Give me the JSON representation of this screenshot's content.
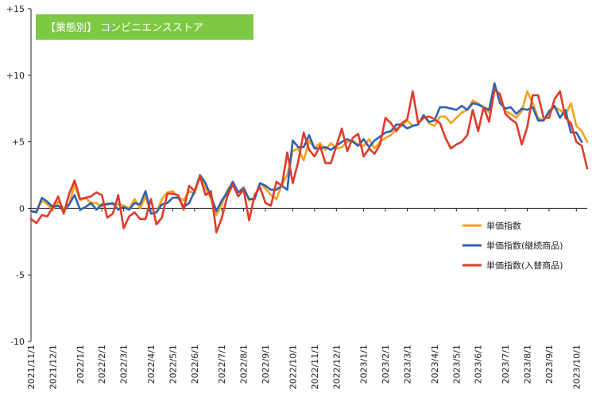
{
  "title": "【業態別】 コンビニエンスストア",
  "colors": {
    "title_bg": "#7dc943",
    "axis": "#222222",
    "series": [
      "#f5a21b",
      "#2e62b2",
      "#e03b2a"
    ]
  },
  "chart_data": {
    "type": "line",
    "title": "【業態別】 コンビニエンスストア",
    "xlabel": "",
    "ylabel": "",
    "ylim": [
      -10,
      15
    ],
    "yticks": [
      -10,
      -5,
      0,
      5,
      10,
      15
    ],
    "ytick_labels": [
      "-10",
      "-5",
      "0",
      "+5",
      "+10",
      "+15"
    ],
    "x_ticks": [
      {
        "index": 0,
        "label": "2021/11/1"
      },
      {
        "index": 4,
        "label": "2021/12/1"
      },
      {
        "index": 9,
        "label": "2022/1/1"
      },
      {
        "index": 13,
        "label": "2022/2/1"
      },
      {
        "index": 17,
        "label": "2022/3/1"
      },
      {
        "index": 22,
        "label": "2022/4/1"
      },
      {
        "index": 26,
        "label": "2022/5/1"
      },
      {
        "index": 30,
        "label": "2022/6/1"
      },
      {
        "index": 35,
        "label": "2022/7/1"
      },
      {
        "index": 39,
        "label": "2022/8/1"
      },
      {
        "index": 43,
        "label": "2022/9/1"
      },
      {
        "index": 48,
        "label": "2022/10/1"
      },
      {
        "index": 52,
        "label": "2022/11/1"
      },
      {
        "index": 56,
        "label": "2022/12/1"
      },
      {
        "index": 61,
        "label": "2023/1/1"
      },
      {
        "index": 65,
        "label": "2023/2/1"
      },
      {
        "index": 69,
        "label": "2023/3/1"
      },
      {
        "index": 74,
        "label": "2023/4/1"
      },
      {
        "index": 78,
        "label": "2023/5/1"
      },
      {
        "index": 82,
        "label": "2023/6/1"
      },
      {
        "index": 87,
        "label": "2023/7/1"
      },
      {
        "index": 91,
        "label": "2023/8/1"
      },
      {
        "index": 95,
        "label": "2023/9/1"
      },
      {
        "index": 100,
        "label": "2023/10/1"
      }
    ],
    "legend_position": "right",
    "grid": false,
    "series": [
      {
        "name": "単価指数",
        "values": [
          -0.3,
          -0.2,
          0.6,
          0.3,
          -0.1,
          0.5,
          0,
          0.3,
          1.8,
          0.6,
          0.8,
          0.4,
          0.4,
          0.1,
          0.4,
          0.3,
          0.3,
          0.2,
          0,
          0.7,
          0,
          0.9,
          -0.4,
          -0.3,
          0.7,
          1.2,
          1.3,
          0.8,
          0.6,
          1.3,
          1.1,
          2.5,
          1.6,
          0.7,
          -0.5,
          0.3,
          1.4,
          1.9,
          1.2,
          1.6,
          0.6,
          0.8,
          1.9,
          1.5,
          1.0,
          0.7,
          1.8,
          2.5,
          4.3,
          4.5,
          3.6,
          5.1,
          4.5,
          4.9,
          4.4,
          4.9,
          4.5,
          4.6,
          5.0,
          5.1,
          4.8,
          4.7,
          5.2,
          4.5,
          5.0,
          5.3,
          5.5,
          6.0,
          6.2,
          6.6,
          6.2,
          6.3,
          7.0,
          6.4,
          6.2,
          6.9,
          6.9,
          6.4,
          6.8,
          7.2,
          7.4,
          8.1,
          7.9,
          7.6,
          7.2,
          9.2,
          8.3,
          7.3,
          7.1,
          6.8,
          7.3,
          8.8,
          7.9,
          6.8,
          6.6,
          7.2,
          7.6,
          7.4,
          7.0,
          7.9,
          6.2,
          5.8,
          5.0
        ],
        "color": "#f5a21b"
      },
      {
        "name": "単価指数(継続商品)",
        "values": [
          -0.2,
          -0.3,
          0.8,
          0.5,
          0.1,
          0.2,
          -0.2,
          0.3,
          1.0,
          -0.1,
          0.1,
          0.4,
          -0.1,
          0.3,
          0.3,
          0.4,
          -0.1,
          0.1,
          -0.1,
          0.4,
          0.3,
          1.3,
          -0.4,
          -0.3,
          0.3,
          0.4,
          0.8,
          0.8,
          0.1,
          0.4,
          1.3,
          2.5,
          1.9,
          0.9,
          -0.2,
          0.6,
          1.2,
          2.0,
          1.2,
          1.5,
          0.7,
          0.7,
          1.9,
          1.7,
          1.4,
          1.4,
          1.7,
          1.4,
          5.1,
          4.6,
          4.6,
          5.5,
          4.5,
          4.5,
          4.6,
          4.4,
          4.7,
          5.0,
          5.2,
          5.0,
          4.7,
          5.2,
          4.6,
          5.1,
          5.4,
          5.7,
          5.8,
          6.3,
          6.3,
          6.0,
          6.2,
          6.3,
          7.0,
          6.5,
          6.6,
          7.6,
          7.6,
          7.5,
          7.4,
          7.7,
          7.4,
          7.9,
          7.8,
          7.6,
          7.4,
          9.4,
          7.9,
          7.5,
          7.6,
          7.1,
          7.5,
          7.4,
          7.6,
          6.6,
          6.6,
          7.3,
          7.7,
          6.8,
          7.4,
          5.7,
          5.7,
          5.0
        ],
        "color": "#2e62b2"
      },
      {
        "name": "単価指数(入替商品)",
        "values": [
          -0.8,
          -1.1,
          -0.5,
          -0.6,
          0.1,
          0.9,
          -0.4,
          1.1,
          2.1,
          0.7,
          0.8,
          0.9,
          1.2,
          1.0,
          -0.7,
          -0.4,
          1.0,
          -1.5,
          -0.6,
          -0.3,
          -0.8,
          -0.8,
          0.7,
          -1.2,
          -0.7,
          1.1,
          1.1,
          1.0,
          -0.1,
          1.7,
          1.3,
          2.4,
          1.0,
          1.3,
          -1.8,
          -0.7,
          0.9,
          1.8,
          0.9,
          1.4,
          -0.9,
          1.0,
          1.6,
          0.4,
          0.2,
          2.0,
          1.7,
          4.2,
          1.9,
          3.5,
          5.7,
          4.4,
          3.9,
          4.7,
          3.4,
          3.4,
          4.7,
          6.0,
          4.3,
          5.3,
          5.6,
          3.9,
          4.5,
          4.1,
          4.8,
          6.8,
          6.4,
          5.8,
          6.4,
          6.7,
          8.8,
          6.4,
          6.8,
          6.9,
          6.7,
          6.4,
          5.3,
          4.5,
          4.8,
          5.0,
          5.5,
          7.4,
          5.8,
          7.6,
          6.5,
          8.9,
          8.6,
          7.1,
          6.7,
          6.4,
          4.8,
          6.1,
          8.5,
          8.5,
          6.8,
          6.8,
          8.2,
          8.8,
          6.8,
          6.4,
          5.0,
          4.7,
          3.0
        ],
        "color": "#e03b2a"
      }
    ]
  }
}
